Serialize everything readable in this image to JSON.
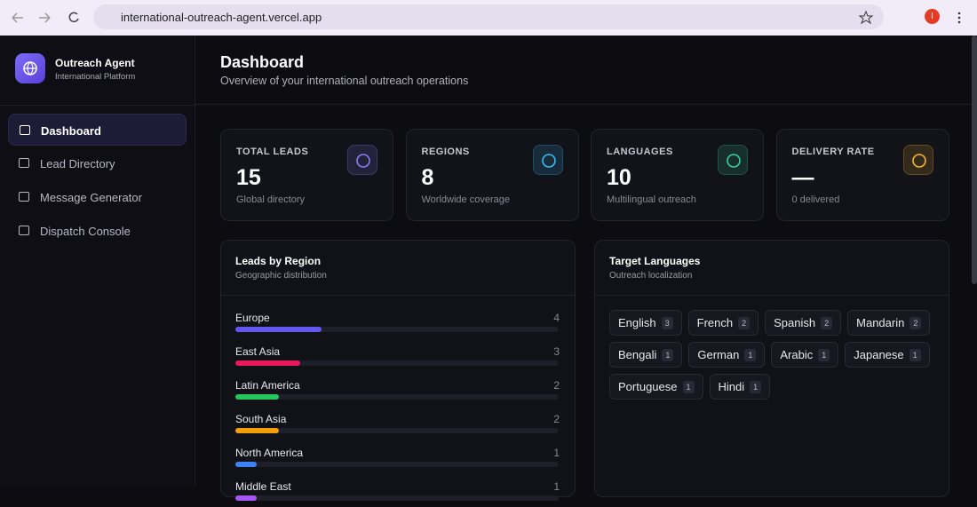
{
  "browser": {
    "url": "international-outreach-agent.vercel.app",
    "profile": "I"
  },
  "sidebar": {
    "brand": "Outreach Agent",
    "tagline": "International Platform",
    "nav": [
      "Dashboard",
      "Lead Directory",
      "Message Generator",
      "Dispatch Console"
    ]
  },
  "header": {
    "title": "Dashboard",
    "subtitle": "Overview of your international outreach operations"
  },
  "stats": [
    {
      "label": "TOTAL LEADS",
      "value": 15,
      "note": "Global directory",
      "color": "#8b7cf6"
    },
    {
      "label": "REGIONS",
      "value": 8,
      "note": "Worldwide coverage",
      "color": "#38bdf8"
    },
    {
      "label": "LANGUAGES",
      "value": 10,
      "note": "Multilingual outreach",
      "color": "#34d399"
    },
    {
      "label": "DELIVERY RATE",
      "value": "—",
      "note": "0 delivered",
      "color": "#f5b52a"
    }
  ],
  "regions": {
    "title": "Leads by Region",
    "subtitle": "Geographic distribution",
    "rows": [
      {
        "name": "Europe",
        "value": 4,
        "color": "#6457f0"
      },
      {
        "name": "East Asia",
        "value": 3,
        "color": "#e8185a"
      },
      {
        "name": "Latin America",
        "value": 2,
        "color": "#22c55e"
      },
      {
        "name": "South Asia",
        "value": 2,
        "color": "#f59e0b"
      },
      {
        "name": "North America",
        "value": 1,
        "color": "#3b82f6"
      },
      {
        "name": "Middle East",
        "value": 1,
        "color": "#a855f7"
      }
    ]
  },
  "languages": {
    "title": "Target Languages",
    "subtitle": "Outreach localization",
    "items": [
      {
        "name": "English",
        "count": 3
      },
      {
        "name": "French",
        "count": 2
      },
      {
        "name": "Spanish",
        "count": 2
      },
      {
        "name": "Mandarin",
        "count": 2
      },
      {
        "name": "Bengali",
        "count": 1
      },
      {
        "name": "German",
        "count": 1
      },
      {
        "name": "Arabic",
        "count": 1
      },
      {
        "name": "Japanese",
        "count": 1
      },
      {
        "name": "Portuguese",
        "count": 1
      },
      {
        "name": "Hindi",
        "count": 1
      }
    ]
  }
}
